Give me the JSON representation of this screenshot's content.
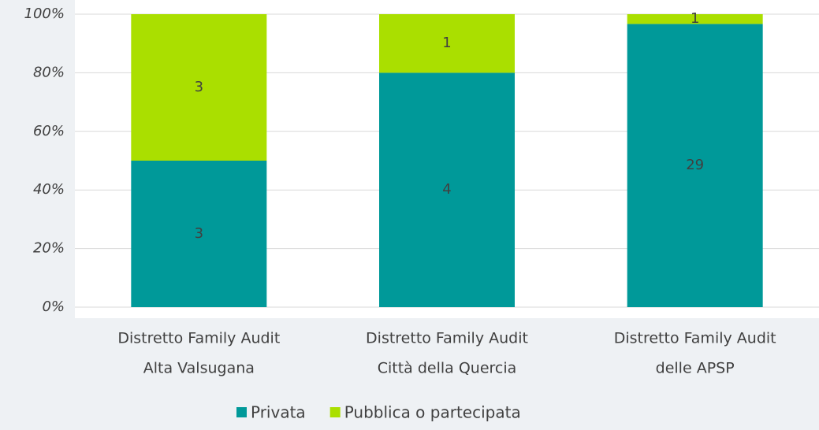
{
  "chart_data": {
    "type": "bar",
    "stacking": "percent",
    "categories": [
      [
        "Distretto Family Audit",
        "Alta Valsugana"
      ],
      [
        "Distretto Family Audit",
        "Città della Quercia"
      ],
      [
        "Distretto Family Audit",
        "delle APSP"
      ]
    ],
    "series": [
      {
        "name": "Privata",
        "color": "#009999",
        "values": [
          3,
          4,
          29
        ]
      },
      {
        "name": "Pubblica o partecipata",
        "color": "#aadf00",
        "values": [
          3,
          1,
          1
        ]
      }
    ],
    "ylim": [
      0,
      100
    ],
    "yticks": [
      {
        "value": 0,
        "label": "0%"
      },
      {
        "value": 20,
        "label": "20%"
      },
      {
        "value": 40,
        "label": "40%"
      },
      {
        "value": 60,
        "label": "60%"
      },
      {
        "value": 80,
        "label": "80%"
      },
      {
        "value": 100,
        "label": "100%"
      }
    ],
    "grid": true,
    "legend": "bottom"
  }
}
